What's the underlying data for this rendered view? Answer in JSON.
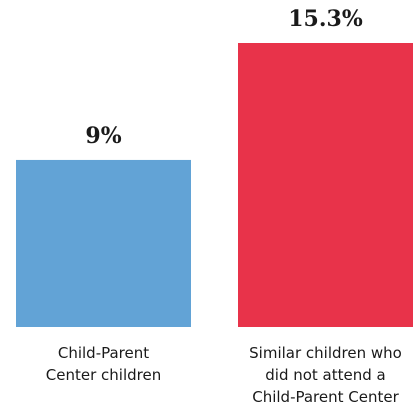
{
  "chart_data": {
    "type": "bar",
    "categories": [
      "Child-Parent Center children",
      "Similar children who did not attend a Child-Parent Center"
    ],
    "category_lines": [
      [
        "Child-Parent",
        "Center children"
      ],
      [
        "Similar children who",
        "did not attend a",
        "Child-Parent Center"
      ]
    ],
    "values": [
      9,
      15.3
    ],
    "value_labels": [
      "9%",
      "15.3%"
    ],
    "colors": [
      "#62a3d6",
      "#e8334a"
    ],
    "title": "",
    "xlabel": "",
    "ylabel": "",
    "ylim": [
      0,
      15.3
    ],
    "grid": false,
    "legend": "none"
  }
}
